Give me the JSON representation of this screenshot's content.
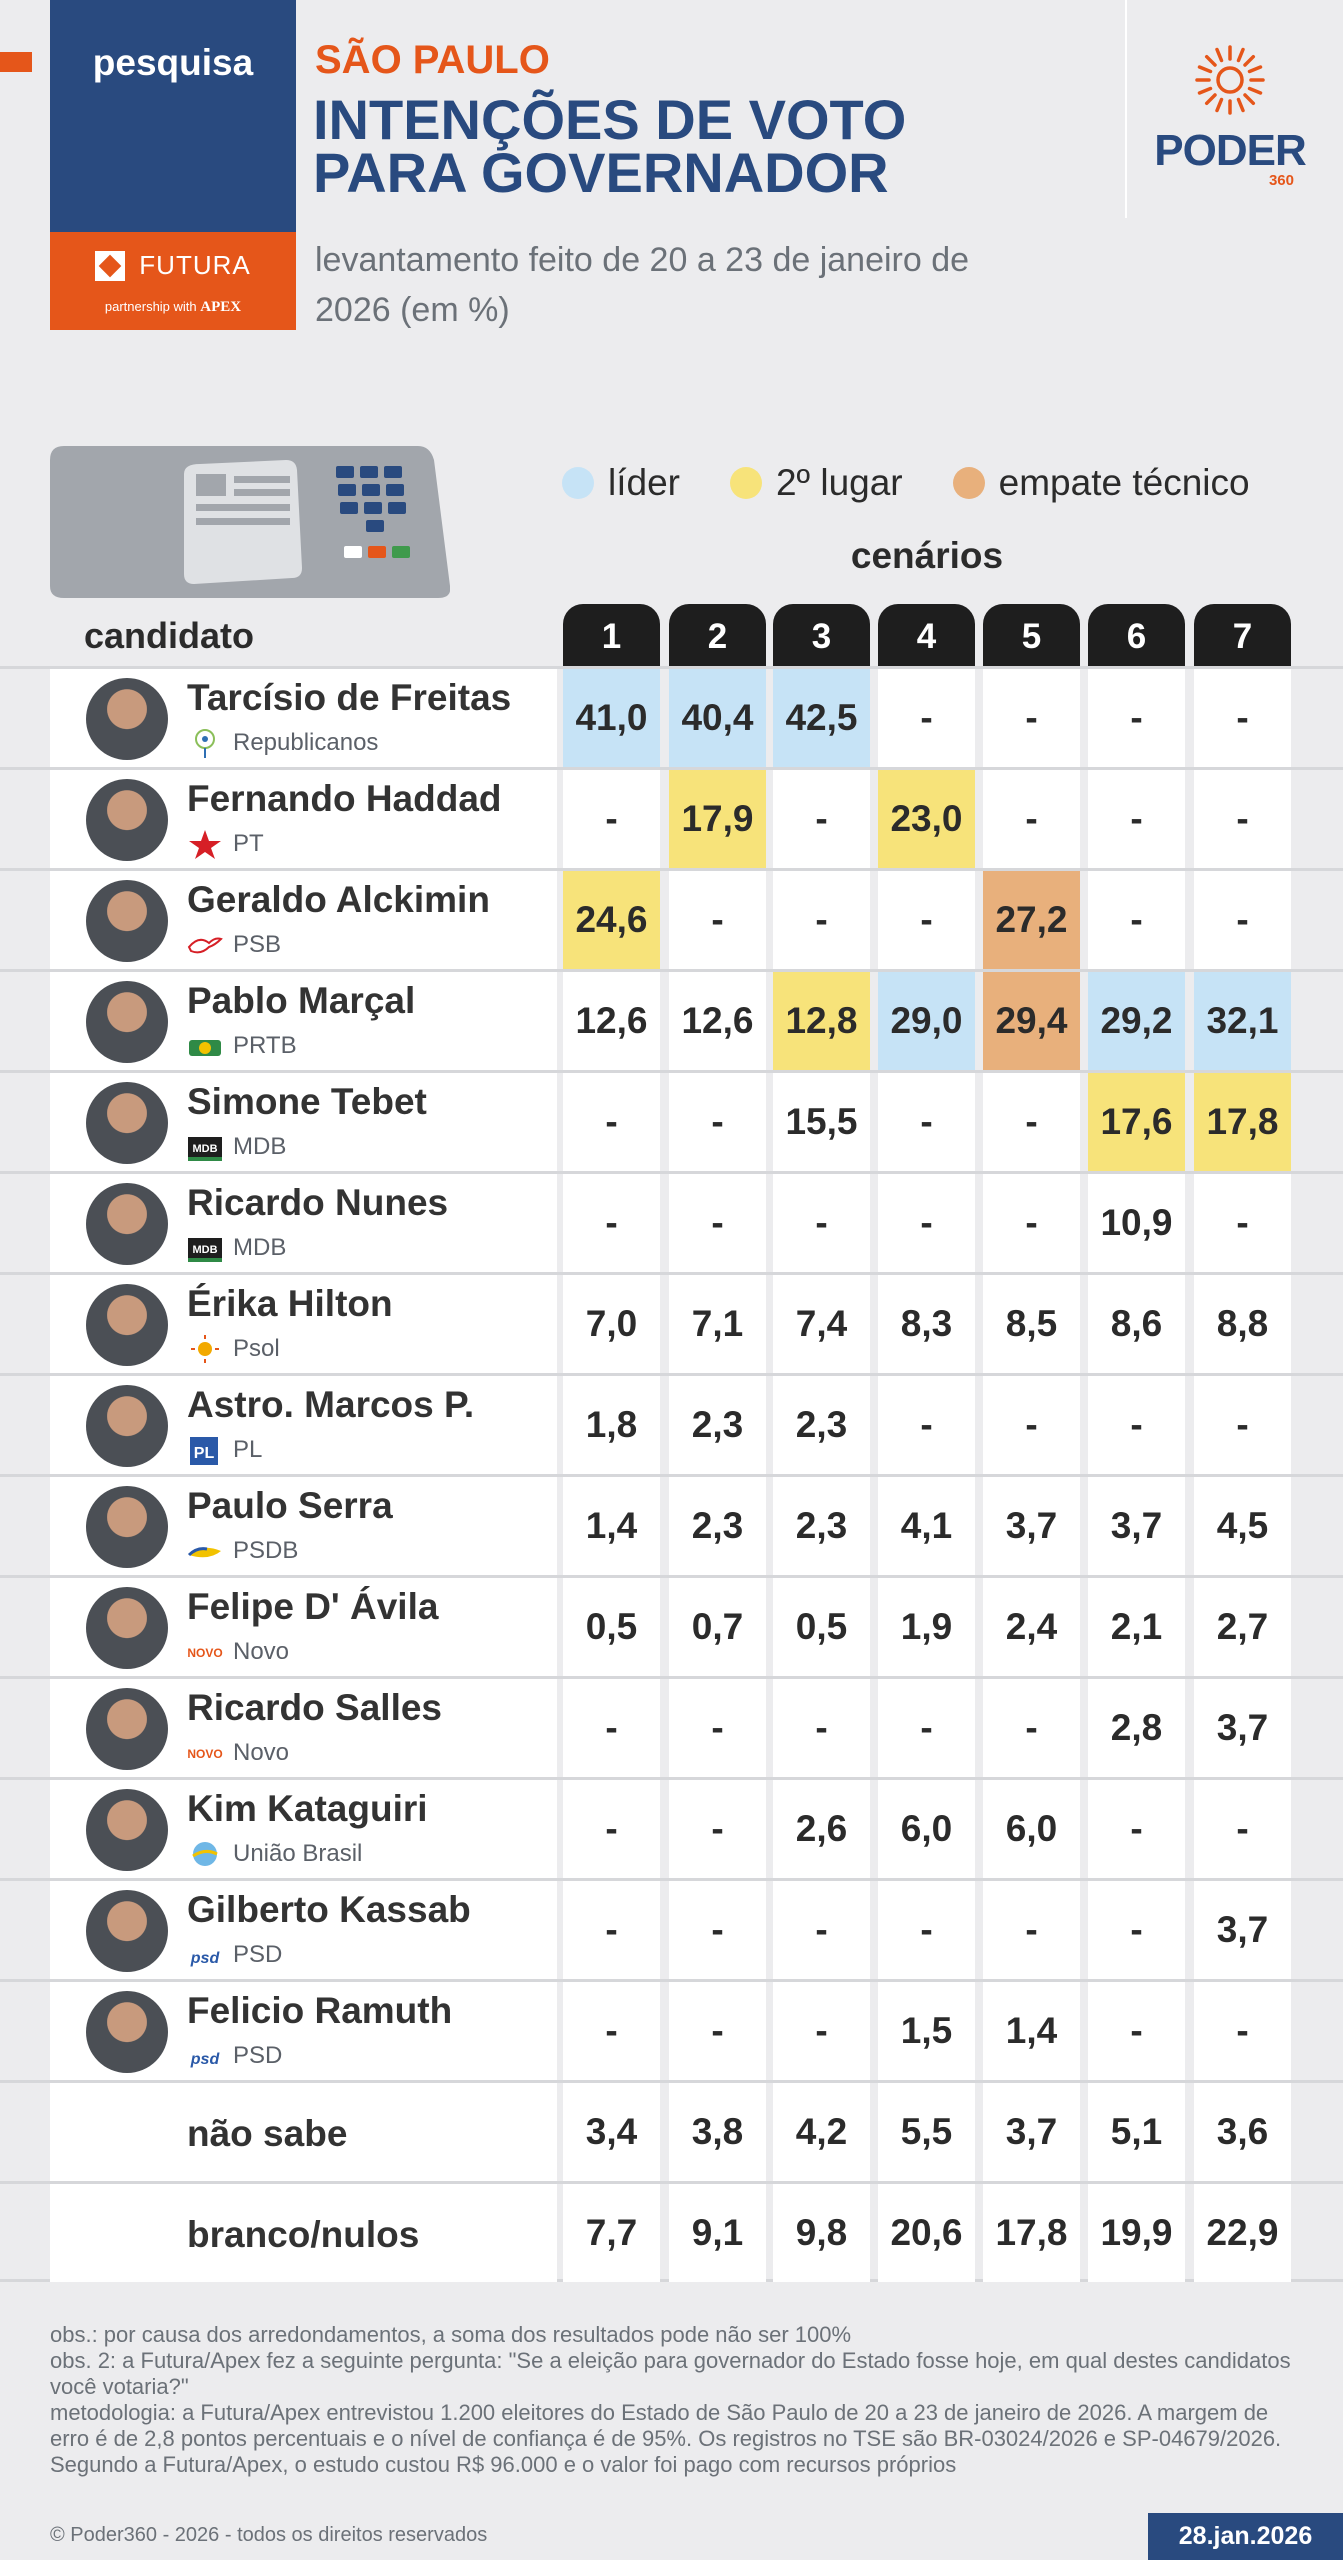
{
  "brand": {
    "top_label": "pesquisa",
    "futura": "FUTURA",
    "partnership": "partnership with",
    "apex": "APEX"
  },
  "header": {
    "state": "SÃO PAULO",
    "title_line1": "INTENÇÕES DE VOTO",
    "title_line2": "PARA GOVERNADOR",
    "subtitle_line1": "levantamento feito de 20 a 23 de janeiro de",
    "subtitle_line2": "2026 (em %)"
  },
  "logo": {
    "name": "PODER",
    "number": "360"
  },
  "legend": [
    {
      "label": "líder",
      "color": "#c6e3f6"
    },
    {
      "label": "2º lugar",
      "color": "#f7e37a"
    },
    {
      "label": "empate técnico",
      "color": "#e8b07c"
    }
  ],
  "colors": {
    "lider": "#c6e3f6",
    "segundo": "#f7e37a",
    "empate": "#e8b07c",
    "navy": "#294a7f",
    "orange": "#e5561a"
  },
  "chart_data": {
    "type": "table",
    "title": "INTENÇÕES DE VOTO PARA GOVERNADOR",
    "scenarios_label": "cenários",
    "candidate_header": "candidato",
    "columns": [
      "1",
      "2",
      "3",
      "4",
      "5",
      "6",
      "7"
    ],
    "rows": [
      {
        "name": "Tarcísio de Freitas",
        "party": "Republicanos",
        "values": [
          "41,0",
          "40,4",
          "42,5",
          "-",
          "-",
          "-",
          "-"
        ],
        "status": [
          "lider",
          "lider",
          "lider",
          "",
          "",
          "",
          ""
        ]
      },
      {
        "name": "Fernando Haddad",
        "party": "PT",
        "values": [
          "-",
          "17,9",
          "-",
          "23,0",
          "-",
          "-",
          "-"
        ],
        "status": [
          "",
          "seg",
          "",
          "seg",
          "",
          "",
          ""
        ]
      },
      {
        "name": "Geraldo Alckimin",
        "party": "PSB",
        "values": [
          "24,6",
          "-",
          "-",
          "-",
          "27,2",
          "-",
          "-"
        ],
        "status": [
          "seg",
          "",
          "",
          "",
          "emp",
          "",
          ""
        ]
      },
      {
        "name": "Pablo Marçal",
        "party": "PRTB",
        "values": [
          "12,6",
          "12,6",
          "12,8",
          "29,0",
          "29,4",
          "29,2",
          "32,1"
        ],
        "status": [
          "",
          "",
          "seg",
          "lider",
          "emp",
          "lider",
          "lider"
        ]
      },
      {
        "name": "Simone Tebet",
        "party": "MDB",
        "values": [
          "-",
          "-",
          "15,5",
          "-",
          "-",
          "17,6",
          "17,8"
        ],
        "status": [
          "",
          "",
          "",
          "",
          "",
          "seg",
          "seg"
        ]
      },
      {
        "name": "Ricardo Nunes",
        "party": "MDB",
        "values": [
          "-",
          "-",
          "-",
          "-",
          "-",
          "10,9",
          "-"
        ],
        "status": [
          "",
          "",
          "",
          "",
          "",
          "",
          ""
        ]
      },
      {
        "name": "Érika Hilton",
        "party": "Psol",
        "values": [
          "7,0",
          "7,1",
          "7,4",
          "8,3",
          "8,5",
          "8,6",
          "8,8"
        ],
        "status": [
          "",
          "",
          "",
          "",
          "",
          "",
          ""
        ]
      },
      {
        "name": "Astro. Marcos P.",
        "party": "PL",
        "values": [
          "1,8",
          "2,3",
          "2,3",
          "-",
          "-",
          "-",
          "-"
        ],
        "status": [
          "",
          "",
          "",
          "",
          "",
          "",
          ""
        ]
      },
      {
        "name": "Paulo Serra",
        "party": "PSDB",
        "values": [
          "1,4",
          "2,3",
          "2,3",
          "4,1",
          "3,7",
          "3,7",
          "4,5"
        ],
        "status": [
          "",
          "",
          "",
          "",
          "",
          "",
          ""
        ]
      },
      {
        "name": "Felipe D' Ávila",
        "party": "Novo",
        "values": [
          "0,5",
          "0,7",
          "0,5",
          "1,9",
          "2,4",
          "2,1",
          "2,7"
        ],
        "status": [
          "",
          "",
          "",
          "",
          "",
          "",
          ""
        ]
      },
      {
        "name": "Ricardo Salles",
        "party": "Novo",
        "values": [
          "-",
          "-",
          "-",
          "-",
          "-",
          "2,8",
          "3,7"
        ],
        "status": [
          "",
          "",
          "",
          "",
          "",
          "",
          ""
        ]
      },
      {
        "name": "Kim Kataguiri",
        "party": "União Brasil",
        "values": [
          "-",
          "-",
          "2,6",
          "6,0",
          "6,0",
          "-",
          "-"
        ],
        "status": [
          "",
          "",
          "",
          "",
          "",
          "",
          ""
        ]
      },
      {
        "name": "Gilberto Kassab",
        "party": "PSD",
        "values": [
          "-",
          "-",
          "-",
          "-",
          "-",
          "-",
          "3,7"
        ],
        "status": [
          "",
          "",
          "",
          "",
          "",
          "",
          ""
        ]
      },
      {
        "name": "Felicio Ramuth",
        "party": "PSD",
        "values": [
          "-",
          "-",
          "-",
          "1,5",
          "1,4",
          "-",
          "-"
        ],
        "status": [
          "",
          "",
          "",
          "",
          "",
          "",
          ""
        ]
      },
      {
        "name": "não sabe",
        "party": "",
        "values": [
          "3,4",
          "3,8",
          "4,2",
          "5,5",
          "3,7",
          "5,1",
          "3,6"
        ],
        "status": [
          "",
          "",
          "",
          "",
          "",
          "",
          ""
        ]
      },
      {
        "name": "branco/nulos",
        "party": "",
        "values": [
          "7,7",
          "9,1",
          "9,8",
          "20,6",
          "17,8",
          "19,9",
          "22,9"
        ],
        "status": [
          "",
          "",
          "",
          "",
          "",
          "",
          ""
        ]
      }
    ]
  },
  "footer": {
    "obs1": "obs.: por causa dos arredondamentos, a soma dos resultados pode não ser 100%",
    "obs2": "obs. 2: a Futura/Apex fez a seguinte pergunta: \"Se a eleição para governador do Estado fosse hoje, em qual destes candidatos você votaria?\"",
    "metodologia": "metodologia: a Futura/Apex entrevistou 1.200 eleitores do Estado de São Paulo de 20 a 23 de janeiro de 2026. A margem de erro é de 2,8 pontos percentuais e o nível de confiança é de 95%. Os registros no TSE são BR-03024/2026 e SP-04679/2026. Segundo a Futura/Apex, o estudo custou R$ 96.000 e o valor foi pago com recursos próprios",
    "copyright": "© Poder360 - 2026 - todos os direitos reservados",
    "date": "28.jan.2026"
  }
}
